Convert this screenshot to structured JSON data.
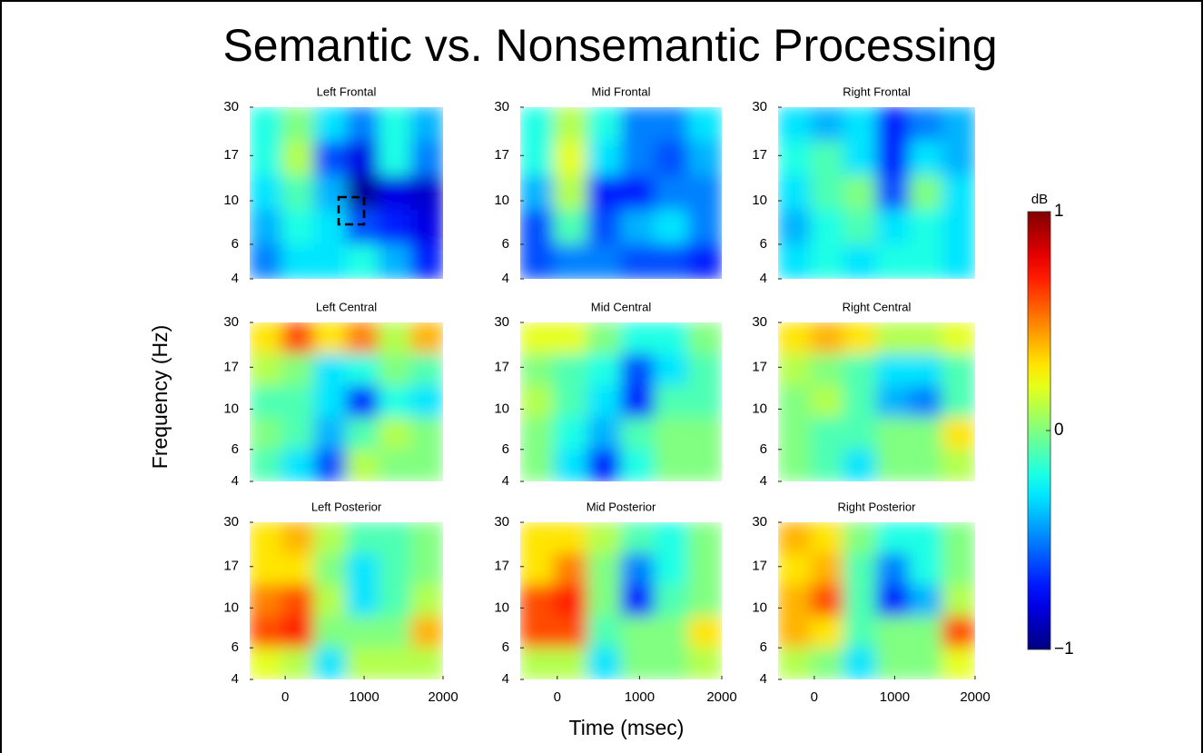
{
  "figure": {
    "title": "Semantic vs. Nonsemantic Processing",
    "ylabel": "Frequency (Hz)",
    "xlabel": "Time (msec)",
    "colorbar": {
      "label": "dB",
      "lim": [
        -1,
        1
      ],
      "ticks": [
        1,
        0,
        {
          "value": -1,
          "label": "−1"
        }
      ],
      "colormap": "jet"
    }
  },
  "chart_data": [
    {
      "type": "heatmap",
      "title": "Left Frontal",
      "ylog": true,
      "ylim": [
        4,
        30
      ],
      "yticks": [
        30,
        17,
        10,
        6,
        4
      ],
      "xlim": [
        -450,
        2000
      ],
      "z": [
        [
          -0.2,
          0.0,
          -0.3,
          -0.5,
          -0.2,
          -0.4
        ],
        [
          -0.2,
          0.1,
          -0.6,
          -0.8,
          -0.2,
          -0.5
        ],
        [
          -0.3,
          -0.1,
          -0.4,
          -0.95,
          -0.8,
          -0.85
        ],
        [
          -0.4,
          -0.2,
          -0.3,
          -0.6,
          -0.7,
          -0.8
        ],
        [
          -0.5,
          -0.3,
          -0.3,
          -0.2,
          -0.4,
          -0.7
        ]
      ]
    },
    {
      "type": "heatmap",
      "title": "Mid Frontal",
      "ylog": true,
      "ylim": [
        4,
        30
      ],
      "yticks": [
        30,
        17,
        10,
        6,
        4
      ],
      "xlim": [
        -450,
        2000
      ],
      "z": [
        [
          -0.2,
          0.1,
          -0.2,
          -0.5,
          -0.5,
          -0.3
        ],
        [
          -0.2,
          0.2,
          -0.3,
          -0.5,
          -0.6,
          -0.4
        ],
        [
          -0.4,
          0.1,
          -0.7,
          -0.7,
          -0.5,
          -0.5
        ],
        [
          -0.6,
          -0.1,
          -0.6,
          -0.4,
          -0.3,
          -0.5
        ],
        [
          -0.6,
          -0.5,
          -0.5,
          -0.6,
          -0.6,
          -0.7
        ]
      ]
    },
    {
      "type": "heatmap",
      "title": "Right Frontal",
      "ylog": true,
      "ylim": [
        4,
        30
      ],
      "yticks": [
        30,
        17,
        10,
        6,
        4
      ],
      "xlim": [
        -450,
        2000
      ],
      "z": [
        [
          -0.3,
          -0.4,
          -0.3,
          -0.7,
          -0.5,
          -0.4
        ],
        [
          -0.2,
          -0.1,
          -0.3,
          -0.7,
          -0.3,
          -0.4
        ],
        [
          -0.3,
          -0.1,
          0.0,
          -0.6,
          0.0,
          -0.3
        ],
        [
          -0.4,
          -0.2,
          -0.1,
          -0.3,
          -0.2,
          -0.3
        ],
        [
          -0.3,
          -0.2,
          -0.3,
          -0.2,
          -0.2,
          -0.3
        ]
      ]
    },
    {
      "type": "heatmap",
      "title": "Left Central",
      "ylog": true,
      "ylim": [
        4,
        30
      ],
      "yticks": [
        30,
        17,
        10,
        6,
        4
      ],
      "xlim": [
        -450,
        2000
      ],
      "z": [
        [
          0.3,
          0.6,
          0.3,
          0.5,
          0.1,
          0.4
        ],
        [
          0.1,
          0.0,
          -0.3,
          -0.2,
          0.0,
          -0.1
        ],
        [
          -0.1,
          -0.1,
          -0.3,
          -0.7,
          -0.2,
          -0.3
        ],
        [
          0.0,
          -0.1,
          -0.4,
          -0.1,
          0.1,
          0.0
        ],
        [
          -0.1,
          -0.3,
          -0.6,
          0.1,
          0.0,
          0.0
        ]
      ]
    },
    {
      "type": "heatmap",
      "title": "Mid Central",
      "ylog": true,
      "ylim": [
        4,
        30
      ],
      "yticks": [
        30,
        17,
        10,
        6,
        4
      ],
      "xlim": [
        -450,
        2000
      ],
      "z": [
        [
          0.2,
          0.2,
          0.0,
          -0.2,
          -0.2,
          0.0
        ],
        [
          0.0,
          -0.1,
          -0.2,
          -0.6,
          -0.3,
          -0.1
        ],
        [
          0.1,
          -0.1,
          -0.3,
          -0.7,
          -0.1,
          -0.1
        ],
        [
          0.0,
          -0.2,
          -0.4,
          -0.1,
          0.0,
          0.0
        ],
        [
          0.0,
          -0.3,
          -0.7,
          -0.2,
          0.0,
          0.0
        ]
      ]
    },
    {
      "type": "heatmap",
      "title": "Right Central",
      "ylog": true,
      "ylim": [
        4,
        30
      ],
      "yticks": [
        30,
        17,
        10,
        6,
        4
      ],
      "xlim": [
        -450,
        2000
      ],
      "z": [
        [
          0.3,
          0.4,
          0.3,
          0.1,
          0.1,
          0.2
        ],
        [
          0.1,
          0.0,
          -0.1,
          -0.3,
          -0.3,
          -0.1
        ],
        [
          0.0,
          0.1,
          -0.1,
          -0.4,
          -0.5,
          -0.1
        ],
        [
          0.0,
          -0.1,
          -0.1,
          0.0,
          0.0,
          0.3
        ],
        [
          0.0,
          -0.1,
          -0.3,
          0.0,
          0.0,
          0.1
        ]
      ]
    },
    {
      "type": "heatmap",
      "title": "Left Posterior",
      "ylog": true,
      "ylim": [
        4,
        30
      ],
      "yticks": [
        30,
        17,
        10,
        6,
        4
      ],
      "xlim": [
        -450,
        2000
      ],
      "xticks": [
        0,
        1000,
        2000
      ],
      "z": [
        [
          0.3,
          0.4,
          0.1,
          -0.1,
          -0.1,
          0.0
        ],
        [
          0.3,
          0.3,
          0.0,
          -0.3,
          -0.1,
          0.0
        ],
        [
          0.5,
          0.6,
          0.1,
          -0.3,
          -0.1,
          0.1
        ],
        [
          0.6,
          0.7,
          0.0,
          0.0,
          0.0,
          0.4
        ],
        [
          0.2,
          0.1,
          -0.3,
          0.1,
          0.1,
          0.1
        ]
      ]
    },
    {
      "type": "heatmap",
      "title": "Mid Posterior",
      "ylog": true,
      "ylim": [
        4,
        30
      ],
      "yticks": [
        30,
        17,
        10,
        6,
        4
      ],
      "xlim": [
        -450,
        2000
      ],
      "xticks": [
        0,
        1000,
        2000
      ],
      "z": [
        [
          0.3,
          0.3,
          0.1,
          -0.1,
          -0.2,
          0.0
        ],
        [
          0.3,
          0.5,
          0.0,
          -0.5,
          -0.2,
          0.0
        ],
        [
          0.6,
          0.7,
          0.0,
          -0.7,
          -0.1,
          0.0
        ],
        [
          0.6,
          0.6,
          -0.1,
          0.0,
          0.0,
          0.3
        ],
        [
          0.1,
          0.1,
          -0.3,
          0.0,
          0.0,
          0.1
        ]
      ]
    },
    {
      "type": "heatmap",
      "title": "Right Posterior",
      "ylog": true,
      "ylim": [
        4,
        30
      ],
      "yticks": [
        30,
        17,
        10,
        6,
        4
      ],
      "xlim": [
        -450,
        2000
      ],
      "xticks": [
        0,
        1000,
        2000
      ],
      "z": [
        [
          0.4,
          0.3,
          0.0,
          -0.2,
          -0.2,
          0.0
        ],
        [
          0.3,
          0.4,
          -0.1,
          -0.5,
          -0.2,
          0.0
        ],
        [
          0.4,
          0.6,
          -0.1,
          -0.7,
          -0.4,
          0.1
        ],
        [
          0.4,
          0.3,
          -0.1,
          0.0,
          0.0,
          0.6
        ],
        [
          0.1,
          0.0,
          -0.3,
          0.0,
          0.0,
          0.2
        ]
      ]
    }
  ]
}
